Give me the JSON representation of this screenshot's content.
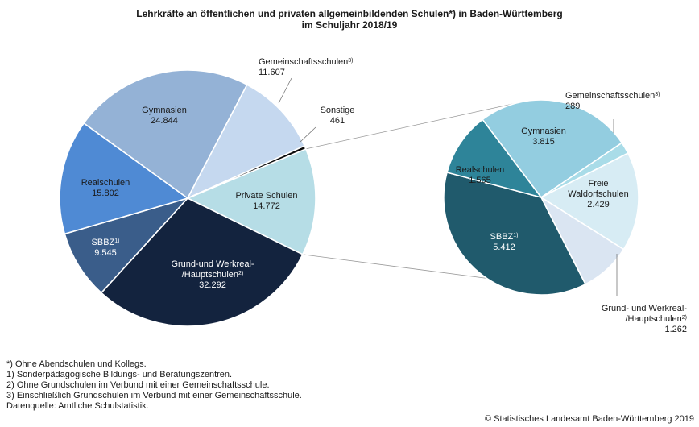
{
  "chart_data": [
    {
      "type": "pie",
      "id": "all",
      "title_line1": "Lehrkräfte an öffentlichen und privaten allgemeinbildenden Schulen*) in Baden-Württemberg",
      "title_line2": "im Schuljahr 2018/19",
      "slices": [
        {
          "label_lines": [
            "Private Schulen"
          ],
          "value": 14772,
          "value_text": "14.772",
          "color": "#b6dde6"
        },
        {
          "label_lines": [
            "Grund-und Werkreal-",
            "/Hauptschulen"
          ],
          "sup": "2)",
          "value": 32292,
          "value_text": "32.292",
          "color": "#13233e"
        },
        {
          "label_lines": [
            "SBBZ"
          ],
          "sup": "1)",
          "value": 9545,
          "value_text": "9.545",
          "color": "#3a5d8a"
        },
        {
          "label_lines": [
            "Realschulen"
          ],
          "value": 15802,
          "value_text": "15.802",
          "color": "#4f8ad4"
        },
        {
          "label_lines": [
            "Gymnasien"
          ],
          "value": 24844,
          "value_text": "24.844",
          "color": "#94b2d6"
        },
        {
          "label_lines": [
            "Gemeinschaftsschulen"
          ],
          "sup": "3)",
          "value": 11607,
          "value_text": "11.607",
          "color": "#c5d8ef"
        },
        {
          "label_lines": [
            "Sonstige"
          ],
          "value": 461,
          "value_text": "461",
          "color": "#0a0a0a"
        }
      ]
    },
    {
      "type": "pie",
      "id": "private",
      "title": "Private Schulen",
      "slices": [
        {
          "label_lines": [
            "Gymnasien"
          ],
          "value": 3815,
          "value_text": "3.815",
          "color": "#93cde0"
        },
        {
          "label_lines": [
            "Gemeinschaftsschulen"
          ],
          "sup": "3)",
          "value": 289,
          "value_text": "289",
          "color": "#a9dce8"
        },
        {
          "label_lines": [
            "Freie",
            "Waldorfschulen"
          ],
          "value": 2429,
          "value_text": "2.429",
          "color": "#d7ecf4"
        },
        {
          "label_lines": [
            "Grund- und Werkreal-",
            "/Hauptschulen"
          ],
          "sup": "2)",
          "value": 1262,
          "value_text": "1.262",
          "color": "#dae5f2"
        },
        {
          "label_lines": [
            "SBBZ"
          ],
          "sup": "1)",
          "value": 5412,
          "value_text": "5.412",
          "color": "#205a6c"
        },
        {
          "label_lines": [
            "Realschulen"
          ],
          "value": 1565,
          "value_text": "1.565",
          "color": "#2e8499"
        }
      ]
    }
  ],
  "footnotes": [
    "*) Ohne Abendschulen und Kollegs.",
    "1) Sonderpädagogische Bildungs- und Beratungszentren.",
    "2) Ohne Grundschulen im Verbund mit einer Gemeinschaftsschule.",
    "3) Einschließlich Grundschulen im Verbund mit einer Gemeinschaftsschule.",
    "Datenquelle: Amtliche Schulstatistik."
  ],
  "copyright": "© Statistisches Landesamt Baden-Württemberg 2019"
}
